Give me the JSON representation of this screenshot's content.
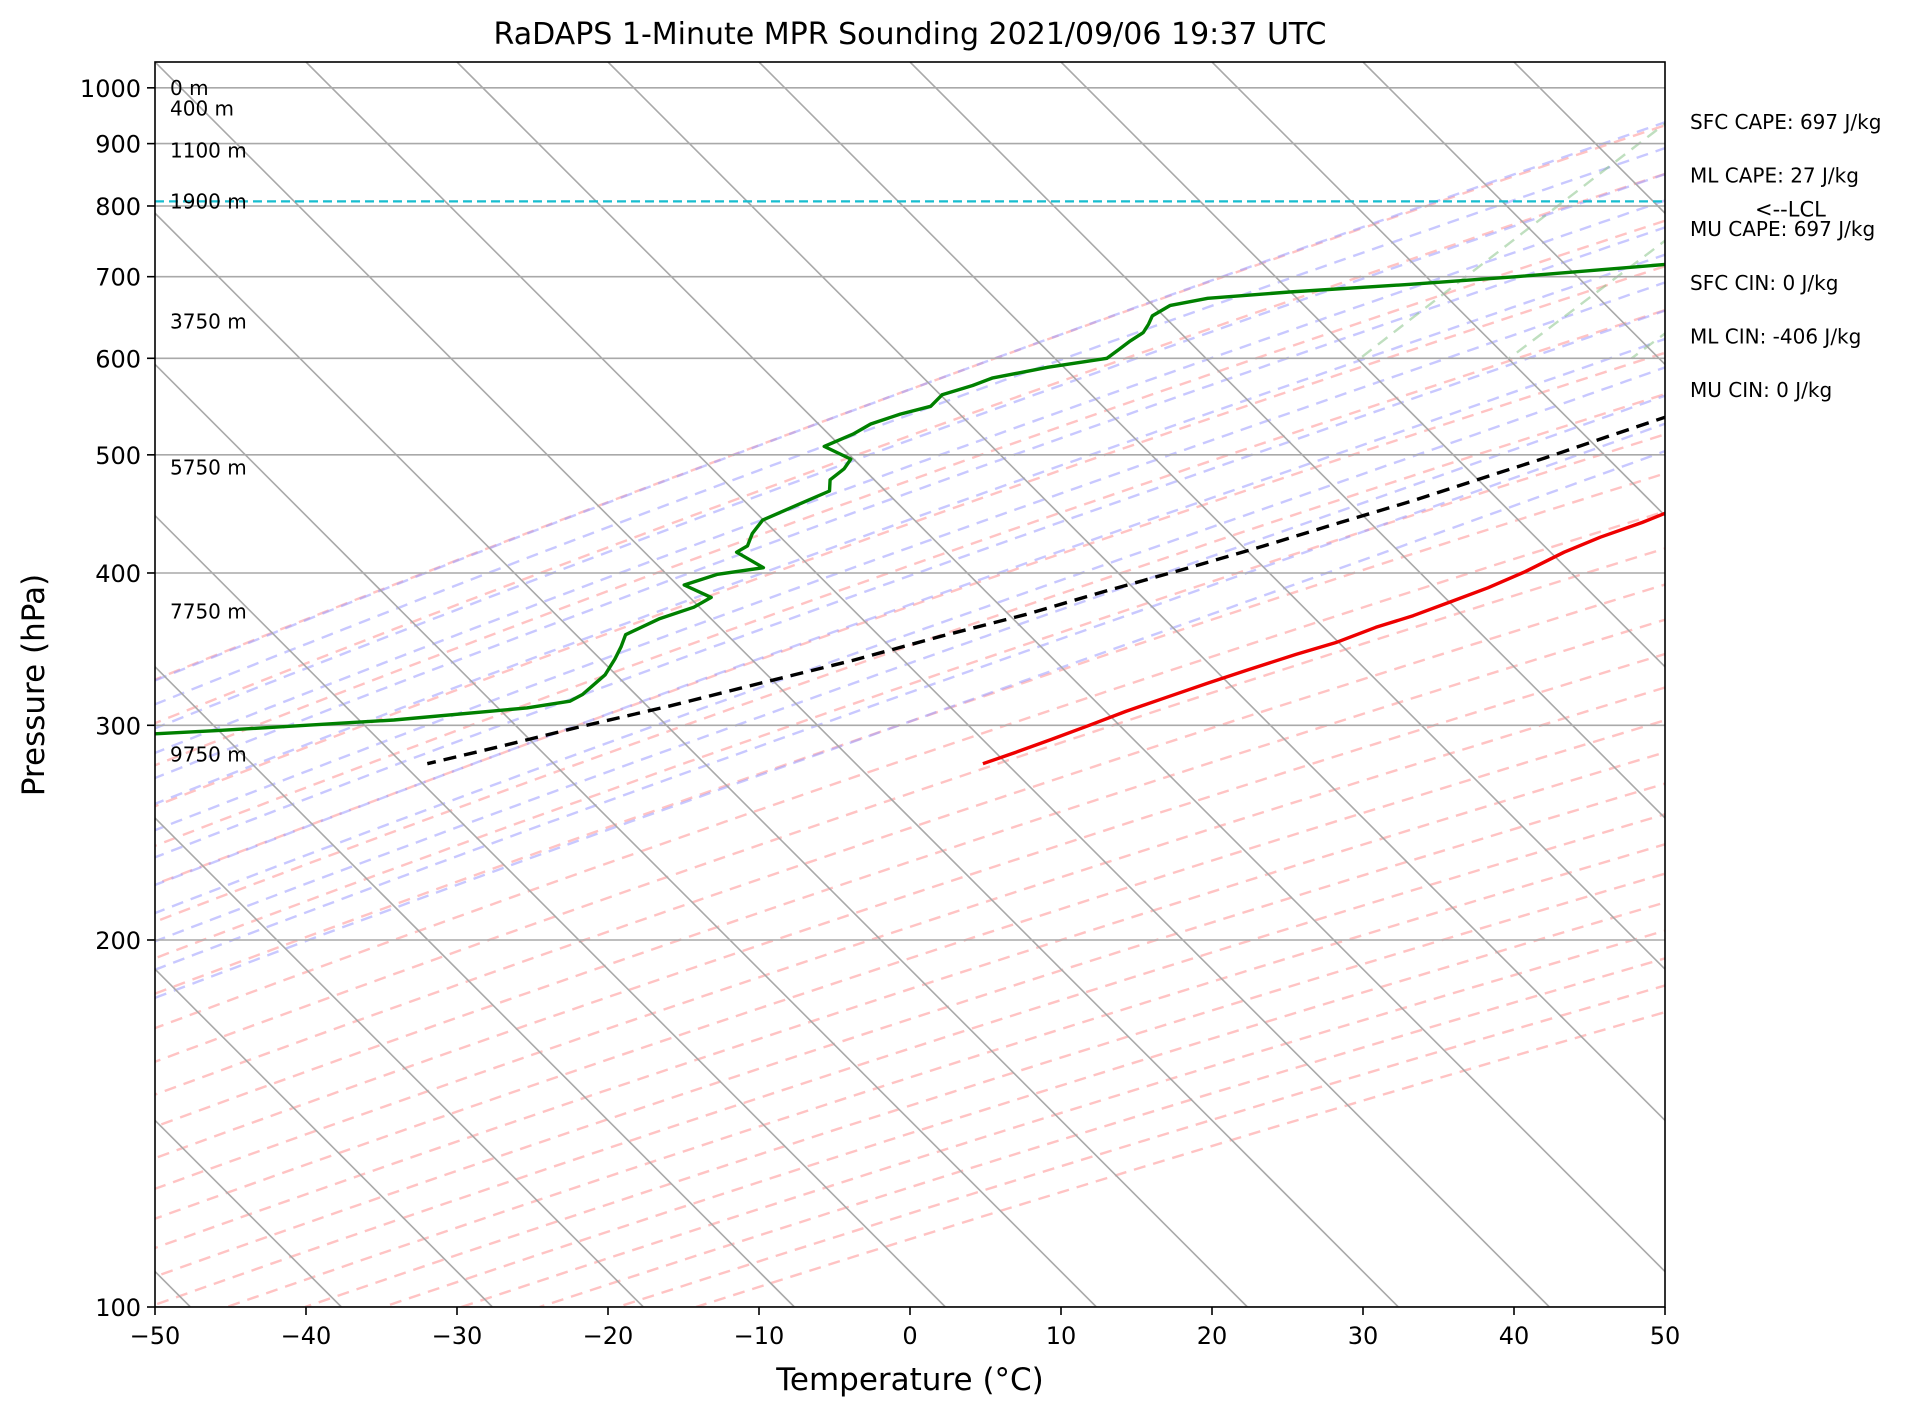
{
  "chart_data": {
    "type": "line",
    "title": "RaDAPS 1-Minute MPR Sounding 2021/09/06 19:37 UTC",
    "xlabel": "Temperature (°C)",
    "ylabel": "Pressure (hPa)",
    "xlim": [
      -50,
      50
    ],
    "ylim": [
      1050,
      100
    ],
    "y_scale": "log",
    "skew": true,
    "grid": true,
    "x_ticks": [
      "−50",
      "−40",
      "−30",
      "−20",
      "−10",
      "0",
      "10",
      "20",
      "30",
      "40",
      "50"
    ],
    "x_tick_values": [
      -50,
      -40,
      -30,
      -20,
      -10,
      0,
      10,
      20,
      30,
      40,
      50
    ],
    "y_ticks": [
      "100",
      "200",
      "300",
      "400",
      "500",
      "600",
      "700",
      "800",
      "900",
      "1000"
    ],
    "y_tick_values": [
      100,
      200,
      300,
      400,
      500,
      600,
      700,
      800,
      900,
      1000
    ],
    "height_labels": [
      {
        "text": "9750 m",
        "p": 284
      },
      {
        "text": "7750 m",
        "p": 372
      },
      {
        "text": "5750 m",
        "p": 488
      },
      {
        "text": "3750 m",
        "p": 643
      },
      {
        "text": "1900 m",
        "p": 807
      },
      {
        "text": "1100 m",
        "p": 888
      },
      {
        "text": "400 m",
        "p": 962
      },
      {
        "text": "0 m",
        "p": 1000
      }
    ],
    "lcl": {
      "p": 807,
      "label": "<--LCL"
    },
    "stats": [
      "SFC CAPE: 697 J/kg",
      "ML CAPE: 27 J/kg",
      "MU CAPE: 697 J/kg",
      "SFC CIN: 0 J/kg",
      "ML CIN: -406 J/kg",
      "MU CIN: 0 J/kg"
    ],
    "series": [
      {
        "color": "#ee0000",
        "points": [
          [
            31.4,
            991
          ],
          [
            31.2,
            990
          ],
          [
            29.4,
            986
          ],
          [
            27.5,
            982
          ],
          [
            25.6,
            975
          ],
          [
            24.3,
            965
          ],
          [
            23.1,
            950
          ],
          [
            22.4,
            937
          ],
          [
            21.6,
            920
          ],
          [
            20.7,
            900
          ],
          [
            19.5,
            878
          ],
          [
            19.0,
            865
          ],
          [
            18.2,
            845
          ],
          [
            17.6,
            825
          ],
          [
            16.9,
            805
          ],
          [
            16.5,
            785
          ],
          [
            16.2,
            760
          ],
          [
            15.9,
            730
          ],
          [
            15.6,
            700
          ],
          [
            14.9,
            680
          ],
          [
            13.5,
            658
          ],
          [
            12.3,
            638
          ],
          [
            11.0,
            615
          ],
          [
            9.8,
            595
          ],
          [
            8.9,
            580
          ],
          [
            7.7,
            560
          ],
          [
            6.6,
            540
          ],
          [
            5.1,
            522
          ],
          [
            3.3,
            502
          ],
          [
            1.6,
            482
          ],
          [
            -0.6,
            463
          ],
          [
            -2.0,
            452
          ],
          [
            -3.4,
            440
          ],
          [
            -5.2,
            428
          ],
          [
            -6.6,
            416
          ],
          [
            -7.9,
            401
          ],
          [
            -9.3,
            389
          ],
          [
            -10.8,
            379
          ],
          [
            -12.4,
            369
          ],
          [
            -14.1,
            361
          ],
          [
            -15.7,
            351
          ],
          [
            -17.6,
            343
          ],
          [
            -19.8,
            333
          ],
          [
            -21.5,
            325
          ],
          [
            -23.4,
            316
          ],
          [
            -25.1,
            308
          ],
          [
            -26.6,
            300
          ],
          [
            -28.2,
            292
          ],
          [
            -29.7,
            285
          ],
          [
            -31.1,
            279
          ]
        ]
      },
      {
        "color": "#008000",
        "points": [
          [
            17.4,
            991
          ],
          [
            16.4,
            990
          ],
          [
            15.4,
            988
          ],
          [
            14.8,
            985
          ],
          [
            14.6,
            982
          ],
          [
            14.7,
            978
          ],
          [
            15.0,
            975
          ],
          [
            15.6,
            970
          ],
          [
            16.4,
            965
          ],
          [
            17.1,
            950
          ],
          [
            17.6,
            935
          ],
          [
            18.6,
            920
          ],
          [
            19.1,
            905
          ],
          [
            19.6,
            890
          ],
          [
            19.4,
            875
          ],
          [
            19.1,
            860
          ],
          [
            18.7,
            845
          ],
          [
            18.5,
            835
          ],
          [
            18.3,
            815
          ],
          [
            17.7,
            805
          ],
          [
            16.1,
            795
          ],
          [
            12.5,
            785
          ],
          [
            8.0,
            775
          ],
          [
            2.3,
            760
          ],
          [
            -6.3,
            740
          ],
          [
            -18.6,
            717
          ],
          [
            -28.0,
            700
          ],
          [
            -34.5,
            690
          ],
          [
            -42.0,
            680
          ],
          [
            -47.0,
            672
          ],
          [
            -49.0,
            663
          ],
          [
            -49.5,
            650
          ],
          [
            -49.2,
            640
          ],
          [
            -49.0,
            630
          ],
          [
            -49.3,
            620
          ],
          [
            -49.5,
            610
          ],
          [
            -49.7,
            600
          ],
          [
            -53.0,
            590
          ],
          [
            -56.0,
            578
          ],
          [
            -56.8,
            570
          ],
          [
            -58.2,
            560
          ],
          [
            -58.2,
            548
          ],
          [
            -59.7,
            540
          ],
          [
            -61.0,
            530
          ],
          [
            -61.5,
            520
          ],
          [
            -62.6,
            508
          ],
          [
            -60.0,
            496
          ],
          [
            -59.8,
            487
          ],
          [
            -60.0,
            477
          ],
          [
            -59.3,
            467
          ],
          [
            -60.5,
            455
          ],
          [
            -61.8,
            442
          ],
          [
            -61.6,
            431
          ],
          [
            -61.1,
            421
          ],
          [
            -61.4,
            416
          ],
          [
            -58.6,
            404
          ],
          [
            -61.2,
            399
          ],
          [
            -62.7,
            391
          ],
          [
            -60.1,
            382
          ],
          [
            -60.6,
            375
          ],
          [
            -62.1,
            367
          ],
          [
            -63.3,
            356
          ],
          [
            -62.8,
            348
          ],
          [
            -62.4,
            340
          ],
          [
            -62.0,
            330
          ],
          [
            -62.2,
            318
          ],
          [
            -62.6,
            314
          ],
          [
            -65.0,
            310
          ],
          [
            -73.0,
            303
          ],
          [
            -84.0,
            297
          ],
          [
            -95.0,
            292
          ]
        ]
      },
      {
        "color": "#000000",
        "dashed": true,
        "points": [
          [
            31.4,
            991
          ],
          [
            25.0,
            953
          ],
          [
            21.3,
            925
          ],
          [
            19.0,
            905
          ],
          [
            17.2,
            878
          ],
          [
            16.0,
            847
          ],
          [
            15.1,
            818
          ],
          [
            14.5,
            807
          ],
          [
            13.3,
            790
          ],
          [
            12.1,
            765
          ],
          [
            10.7,
            740
          ],
          [
            9.3,
            720
          ],
          [
            7.8,
            700
          ],
          [
            6.2,
            680
          ],
          [
            4.3,
            660
          ],
          [
            2.6,
            640
          ],
          [
            0.7,
            620
          ],
          [
            -1.5,
            600
          ],
          [
            -3.8,
            578
          ],
          [
            -6.2,
            558
          ],
          [
            -8.7,
            538
          ],
          [
            -11.3,
            518
          ],
          [
            -14.1,
            497
          ],
          [
            -17.0,
            478
          ],
          [
            -20.1,
            458
          ],
          [
            -23.4,
            440
          ],
          [
            -26.9,
            421
          ],
          [
            -30.4,
            404
          ],
          [
            -34.3,
            387
          ],
          [
            -38.1,
            370
          ],
          [
            -42.3,
            355
          ],
          [
            -46.6,
            339
          ],
          [
            -51.1,
            325
          ],
          [
            -55.7,
            311
          ],
          [
            -60.3,
            299
          ],
          [
            -64.3,
            288
          ],
          [
            -67.9,
            279
          ]
        ]
      }
    ]
  }
}
